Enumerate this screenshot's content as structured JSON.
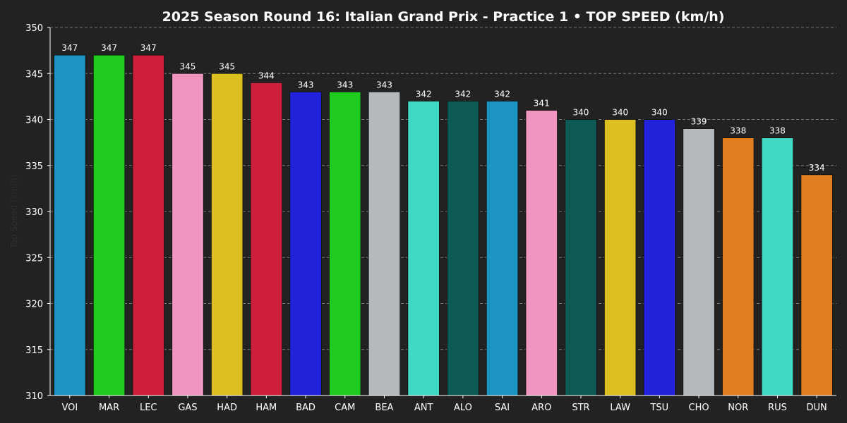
{
  "chart_data": {
    "type": "bar",
    "title": "2025 Season Round 16: Italian Grand Prix - Practice 1  •  TOP SPEED (km/h)",
    "xlabel": "",
    "ylabel": "Top Speed (km/h)",
    "ylim": [
      310,
      350
    ],
    "yticks": [
      310,
      315,
      320,
      325,
      330,
      335,
      340,
      345,
      350
    ],
    "grid": "horizontal dashed",
    "categories": [
      "VOI",
      "MAR",
      "LEC",
      "GAS",
      "HAD",
      "HAM",
      "BAD",
      "CAM",
      "BEA",
      "ANT",
      "ALO",
      "SAI",
      "ARO",
      "STR",
      "LAW",
      "TSU",
      "CHO",
      "NOR",
      "RUS",
      "DUN"
    ],
    "values": [
      347,
      347,
      347,
      345,
      345,
      344,
      343,
      343,
      343,
      342,
      342,
      342,
      341,
      340,
      340,
      340,
      339,
      338,
      338,
      334
    ],
    "colors": [
      "#1b93c3",
      "#1fcb1f",
      "#cc1f3b",
      "#f094c0",
      "#dcbf20",
      "#cc1f3b",
      "#2222d8",
      "#1fcb1f",
      "#b6b9bb",
      "#40d9c3",
      "#0d5a54",
      "#1b93c3",
      "#f094c0",
      "#0d5a54",
      "#dcbf20",
      "#2222d8",
      "#b6b9bb",
      "#e07e20",
      "#40d9c3",
      "#e07e20"
    ]
  }
}
